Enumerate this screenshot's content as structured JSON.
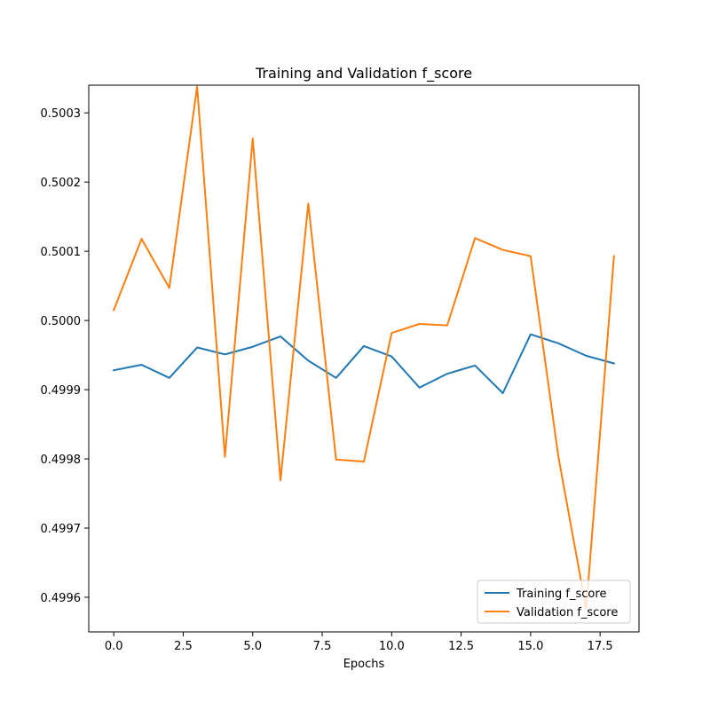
{
  "chart_data": {
    "type": "line",
    "title": "Training and Validation f_score",
    "xlabel": "Epochs",
    "ylabel": "",
    "xlim": [
      -0.9,
      18.9
    ],
    "ylim": [
      0.49955,
      0.50034
    ],
    "xticks": [
      0.0,
      2.5,
      5.0,
      7.5,
      10.0,
      12.5,
      15.0,
      17.5
    ],
    "xtick_labels": [
      "0.0",
      "2.5",
      "5.0",
      "7.5",
      "10.0",
      "12.5",
      "15.0",
      "17.5"
    ],
    "yticks": [
      0.4996,
      0.4997,
      0.4998,
      0.4999,
      0.5,
      0.5001,
      0.5002,
      0.5003
    ],
    "ytick_labels": [
      "0.4996",
      "0.4997",
      "0.4998",
      "0.4999",
      "0.5000",
      "0.5001",
      "0.5002",
      "0.5003"
    ],
    "x": [
      0,
      1,
      2,
      3,
      4,
      5,
      6,
      7,
      8,
      9,
      10,
      11,
      12,
      13,
      14,
      15,
      16,
      17,
      18
    ],
    "series": [
      {
        "name": "Training f_score",
        "color": "#1f77b4",
        "values": [
          0.499928,
          0.499936,
          0.499917,
          0.499961,
          0.499951,
          0.499962,
          0.499977,
          0.499942,
          0.499917,
          0.499963,
          0.499948,
          0.499903,
          0.499923,
          0.499935,
          0.499895,
          0.49998,
          0.499967,
          0.499949,
          0.499938
        ]
      },
      {
        "name": "Validation f_score",
        "color": "#ff7f0e",
        "values": [
          0.500015,
          0.500118,
          0.500047,
          0.500338,
          0.499803,
          0.500263,
          0.499769,
          0.500169,
          0.499799,
          0.499796,
          0.499982,
          0.499995,
          0.499993,
          0.500119,
          0.500102,
          0.500093,
          0.499803,
          0.499583,
          0.500093
        ]
      }
    ],
    "grid": false,
    "legend_position": "lower-right"
  }
}
